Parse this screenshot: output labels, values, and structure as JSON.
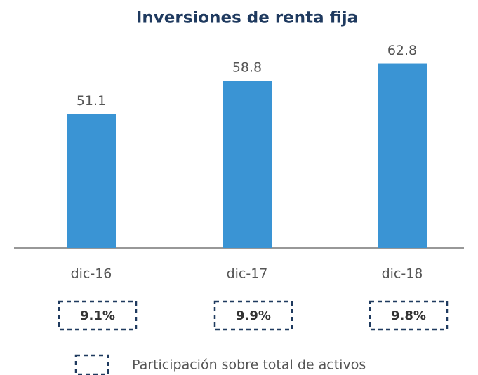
{
  "chart_data": {
    "type": "bar",
    "title": "Inversiones de renta fija",
    "categories": [
      "dic-16",
      "dic-17",
      "dic-18"
    ],
    "values": [
      51.1,
      58.8,
      62.8
    ],
    "color": "#3a94d4",
    "ylim": [
      20,
      65
    ],
    "participation_labels": [
      "9.1%",
      "9.9%",
      "9.8%"
    ],
    "legend_label": "Participación sobre total de activos"
  }
}
